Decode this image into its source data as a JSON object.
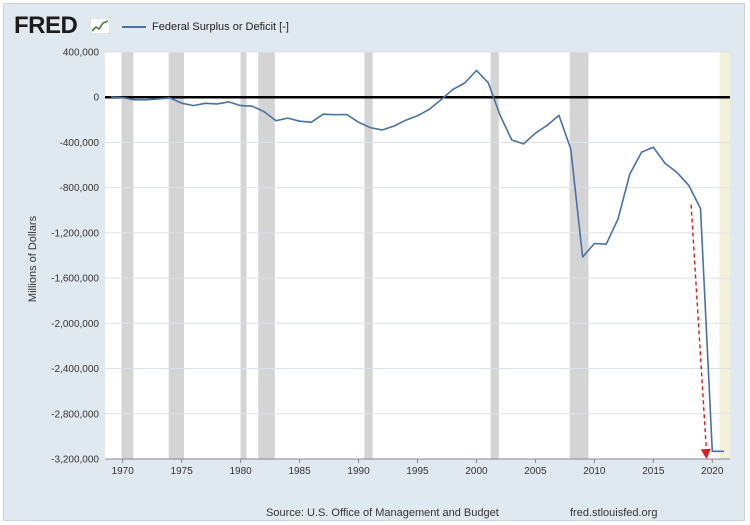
{
  "header": {
    "logo_text": "FRED",
    "logo_mark_icon": "fred-graph-icon",
    "series_label": "Federal Surplus or Deficit [-]"
  },
  "footer": {
    "source": "Source: U.S. Office of Management and Budget",
    "site": "fred.stlouisfed.org"
  },
  "colors": {
    "line": "#4572a7",
    "recession": "#d4d4d4",
    "forecast_band": "#f3f1d7",
    "arrow": "#e31a1c",
    "zero_line": "#000000",
    "background": "#e1e9f0",
    "plot_bg": "#ffffff",
    "grid": "#dde3ea"
  },
  "chart_data": {
    "type": "line",
    "title": "",
    "xlabel": "",
    "ylabel": "Millions of Dollars",
    "xlim": [
      1968.5,
      2021.5
    ],
    "ylim": [
      -3200000,
      400000
    ],
    "x_ticks": [
      1970,
      1975,
      1980,
      1985,
      1990,
      1995,
      2000,
      2005,
      2010,
      2015,
      2020
    ],
    "y_ticks": [
      400000,
      0,
      -400000,
      -800000,
      -1200000,
      -1600000,
      -2000000,
      -2400000,
      -2800000,
      -3200000
    ],
    "y_tick_labels": [
      "400,000",
      "0",
      "-400,000",
      "-800,000",
      "-1,200,000",
      "-1,600,000",
      "-2,000,000",
      "-2,400,000",
      "-2,800,000",
      "-3,200,000"
    ],
    "grid": true,
    "legend": "top-left",
    "series": [
      {
        "name": "Federal Surplus or Deficit [-]",
        "x": [
          1969,
          1970,
          1971,
          1972,
          1973,
          1974,
          1975,
          1976,
          1977,
          1978,
          1979,
          1980,
          1981,
          1982,
          1983,
          1984,
          1985,
          1986,
          1987,
          1988,
          1989,
          1990,
          1991,
          1992,
          1993,
          1994,
          1995,
          1996,
          1997,
          1998,
          1999,
          2000,
          2001,
          2002,
          2003,
          2004,
          2005,
          2006,
          2007,
          2008,
          2009,
          2010,
          2011,
          2012,
          2013,
          2014,
          2015,
          2016,
          2017,
          2018,
          2019,
          2020,
          2021
        ],
        "y": [
          3000,
          -3000,
          -23000,
          -23000,
          -15000,
          -6000,
          -53000,
          -74000,
          -54000,
          -59000,
          -41000,
          -74000,
          -79000,
          -128000,
          -208000,
          -185000,
          -212000,
          -221000,
          -150000,
          -155000,
          -153000,
          -221000,
          -269000,
          -290000,
          -255000,
          -203000,
          -164000,
          -107000,
          -22000,
          69000,
          126000,
          236000,
          128000,
          -158000,
          -378000,
          -413000,
          -318000,
          -248000,
          -161000,
          -459000,
          -1413000,
          -1294000,
          -1300000,
          -1077000,
          -680000,
          -485000,
          -442000,
          -585000,
          -665000,
          -779000,
          -984000,
          -3132000,
          -3132000
        ]
      }
    ],
    "recession_bands": [
      [
        1969.9,
        1970.9
      ],
      [
        1973.9,
        1975.2
      ],
      [
        1980.0,
        1980.5
      ],
      [
        1981.5,
        1982.9
      ],
      [
        1990.5,
        1991.2
      ],
      [
        2001.2,
        2001.9
      ],
      [
        2007.9,
        2009.5
      ]
    ],
    "forecast_band": [
      2020.6,
      2021.5
    ],
    "annotation": {
      "type": "arrow",
      "from": [
        2018.2,
        -950000
      ],
      "to": [
        2019.5,
        -3200000
      ]
    }
  }
}
